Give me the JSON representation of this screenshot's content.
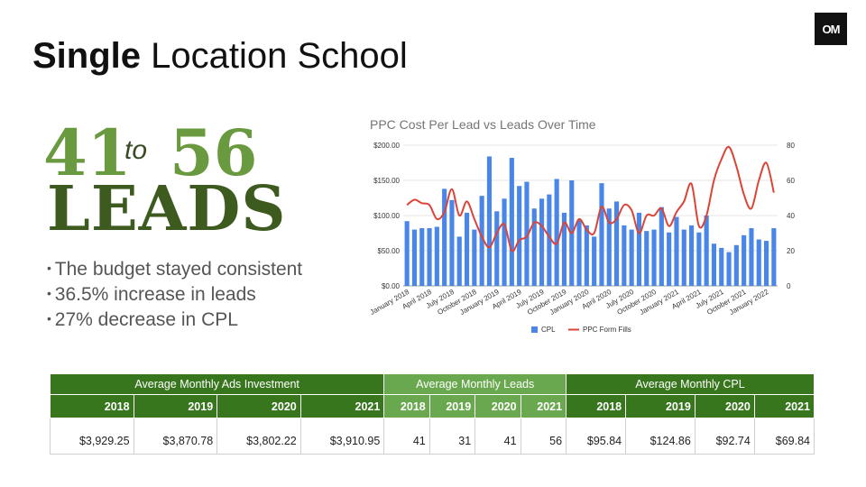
{
  "logo": {
    "text": "OM"
  },
  "title": {
    "bold": "Single",
    "rest": "Location School"
  },
  "headline": {
    "from": "41",
    "to_word": "to",
    "to": "56",
    "unit": "LEADS"
  },
  "bullets": [
    "The budget stayed consistent",
    "36.5% increase in leads",
    "27% decrease in CPL"
  ],
  "colors": {
    "cpl_bar": "#4a86e8",
    "form_fills_line": "#db4437",
    "table_dark": "#38761d",
    "table_light": "#6aa84f"
  },
  "chart_data": {
    "type": "bar",
    "title": "PPC Cost Per Lead vs Leads Over Time",
    "left_axis": {
      "ticks": [
        "$0.00",
        "$50.00",
        "$100.00",
        "$150.00",
        "$200.00"
      ],
      "range": [
        0,
        200
      ]
    },
    "right_axis": {
      "ticks": [
        "0",
        "20",
        "40",
        "60",
        "80"
      ],
      "range": [
        0,
        80
      ]
    },
    "x_tick_labels": [
      "January 2018",
      "April 2018",
      "July 2018",
      "October 2018",
      "January 2019",
      "April 2019",
      "July 2019",
      "October 2019",
      "January 2020",
      "April 2020",
      "July 2020",
      "October 2020",
      "January 2021",
      "April 2021",
      "July 2021",
      "October 2021",
      "January 2022"
    ],
    "legend": {
      "position": "bottom"
    },
    "series": [
      {
        "name": "CPL",
        "type": "bar",
        "axis": "left",
        "values": [
          92,
          80,
          82,
          82,
          84,
          138,
          122,
          70,
          104,
          80,
          128,
          184,
          106,
          124,
          182,
          142,
          148,
          110,
          124,
          130,
          152,
          104,
          150,
          94,
          86,
          70,
          146,
          110,
          120,
          86,
          80,
          104,
          78,
          80,
          112,
          76,
          98,
          80,
          86,
          76,
          100,
          60,
          54,
          48,
          58,
          72,
          82,
          66,
          64,
          82
        ]
      },
      {
        "name": "PPC Form Fills",
        "type": "line",
        "axis": "right",
        "values": [
          46,
          49,
          47,
          46,
          38,
          42,
          55,
          40,
          48,
          38,
          28,
          22,
          30,
          35,
          20,
          26,
          28,
          36,
          34,
          28,
          24,
          36,
          30,
          38,
          32,
          30,
          45,
          36,
          38,
          46,
          43,
          30,
          40,
          40,
          44,
          34,
          42,
          48,
          58,
          34,
          40,
          60,
          72,
          79,
          68,
          52,
          44,
          60,
          70,
          53
        ]
      }
    ]
  },
  "table": {
    "groups": [
      "Average Monthly Ads Investment",
      "Average Monthly Leads",
      "Average Monthly CPL"
    ],
    "years": [
      "2018",
      "2019",
      "2020",
      "2021",
      "2018",
      "2019",
      "2020",
      "2021",
      "2018",
      "2019",
      "2020",
      "2021"
    ],
    "values": [
      "$3,929.25",
      "$3,870.78",
      "$3,802.22",
      "$3,910.95",
      "41",
      "31",
      "41",
      "56",
      "$95.84",
      "$124.86",
      "$92.74",
      "$69.84"
    ]
  }
}
